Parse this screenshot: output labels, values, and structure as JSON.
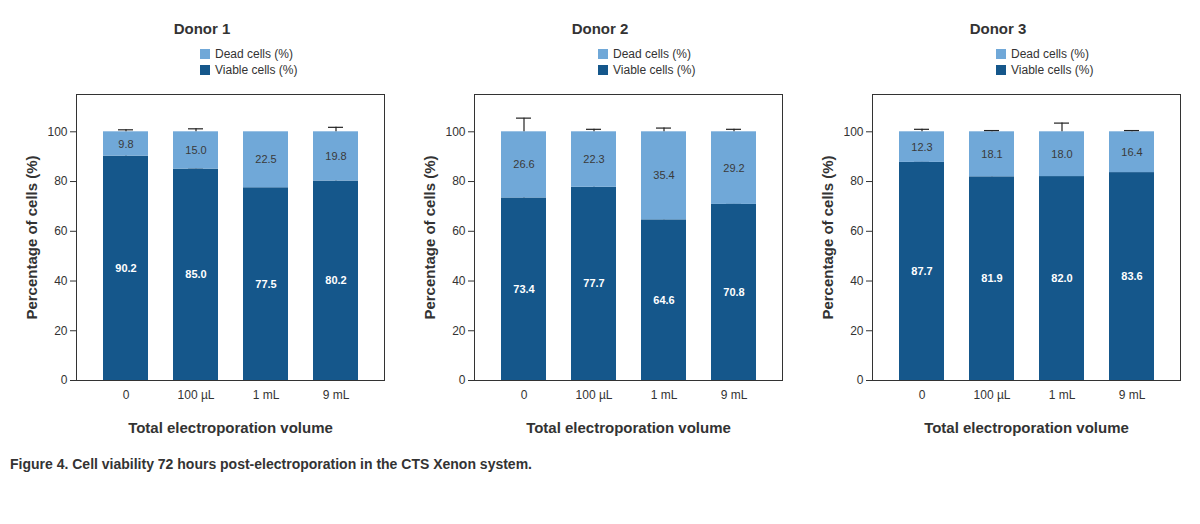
{
  "caption": "Figure 4. Cell viability 72 hours post-electroporation in the CTS Xenon system.",
  "chart_data": [
    {
      "type": "bar",
      "title": "Donor 1",
      "stacked": true,
      "data_labels": true,
      "legend": "top-right",
      "xlabel": "Total electroporation volume",
      "ylabel": "Percentage of cells (%)",
      "categories": [
        "0",
        "100 µL",
        "1 mL",
        "9 mL"
      ],
      "ylim": [
        0,
        115
      ],
      "yticks": [
        0,
        20,
        40,
        60,
        80,
        100
      ],
      "series": [
        {
          "name": "Viable cells (%)",
          "color": "#15578b",
          "values": [
            90.2,
            85.0,
            77.5,
            80.2
          ],
          "value_labels": [
            "90.2",
            "85.0",
            "77.5",
            "80.2"
          ],
          "errors": [
            0.8,
            0.5,
            null,
            2.0
          ]
        },
        {
          "name": "Dead cells (%)",
          "color": "#70a8d8",
          "values": [
            9.8,
            15.0,
            22.5,
            19.8
          ],
          "value_labels": [
            "9.8",
            "15.0",
            "22.5",
            "19.8"
          ],
          "errors": [
            0.8,
            1.2,
            null,
            1.8
          ]
        }
      ]
    },
    {
      "type": "bar",
      "title": "Donor 2",
      "stacked": true,
      "data_labels": true,
      "legend": "top-right",
      "xlabel": "Total electroporation volume",
      "ylabel": "Percentage of cells (%)",
      "categories": [
        "0",
        "100 µL",
        "1 mL",
        "9 mL"
      ],
      "ylim": [
        0,
        115
      ],
      "yticks": [
        0,
        20,
        40,
        60,
        80,
        100
      ],
      "series": [
        {
          "name": "Viable cells (%)",
          "color": "#15578b",
          "values": [
            73.4,
            77.7,
            64.6,
            70.8
          ],
          "value_labels": [
            "73.4",
            "77.7",
            "64.6",
            "70.8"
          ],
          "errors": [
            5.0,
            1.0,
            1.0,
            0.5
          ]
        },
        {
          "name": "Dead cells (%)",
          "color": "#70a8d8",
          "values": [
            26.6,
            22.3,
            35.4,
            29.2
          ],
          "value_labels": [
            "26.6",
            "22.3",
            "35.4",
            "29.2"
          ],
          "errors": [
            5.5,
            1.0,
            1.5,
            1.0
          ]
        }
      ]
    },
    {
      "type": "bar",
      "title": "Donor 3",
      "stacked": true,
      "data_labels": true,
      "legend": "top-right",
      "xlabel": "Total electroporation volume",
      "ylabel": "Percentage of cells (%)",
      "categories": [
        "0",
        "100 µL",
        "1 mL",
        "9 mL"
      ],
      "ylim": [
        0,
        115
      ],
      "yticks": [
        0,
        20,
        40,
        60,
        80,
        100
      ],
      "series": [
        {
          "name": "Viable cells (%)",
          "color": "#15578b",
          "values": [
            87.7,
            81.9,
            82.0,
            83.6
          ],
          "value_labels": [
            "87.7",
            "81.9",
            "82.0",
            "83.6"
          ],
          "errors": [
            0.5,
            1.0,
            3.0,
            0.5
          ]
        },
        {
          "name": "Dead cells (%)",
          "color": "#70a8d8",
          "values": [
            12.3,
            18.1,
            18.0,
            16.4
          ],
          "value_labels": [
            "12.3",
            "18.1",
            "18.0",
            "16.4"
          ],
          "errors": [
            1.0,
            0.5,
            3.5,
            0.5
          ]
        }
      ]
    }
  ]
}
